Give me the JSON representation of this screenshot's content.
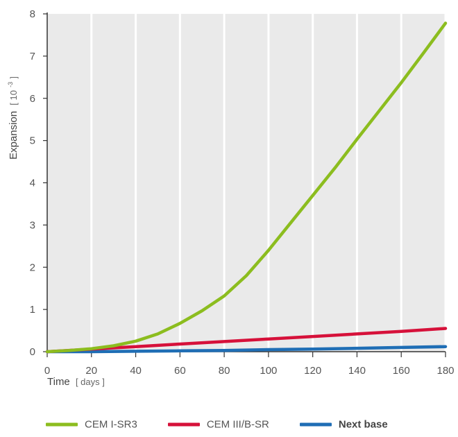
{
  "chart_data": {
    "type": "line",
    "xlabel": "Time",
    "xunit": "[ days ]",
    "ylabel": "Expansion",
    "yunit_prefix": "[ 10",
    "yunit_exp": "-3",
    "yunit_suffix": " ]",
    "xlim": [
      0,
      180
    ],
    "ylim": [
      0,
      8
    ],
    "xticks": [
      0,
      20,
      40,
      60,
      80,
      100,
      120,
      140,
      160,
      180
    ],
    "yticks": [
      0,
      1,
      2,
      3,
      4,
      5,
      6,
      7,
      8
    ],
    "grid": "vertical",
    "legend_position": "bottom",
    "series": [
      {
        "name": "CEM I-SR3",
        "color": "#8cbd1f",
        "x": [
          0,
          10,
          20,
          30,
          40,
          50,
          60,
          70,
          80,
          90,
          100,
          110,
          120,
          130,
          140,
          150,
          160,
          170,
          180
        ],
        "y": [
          0,
          0.03,
          0.07,
          0.14,
          0.25,
          0.42,
          0.67,
          0.97,
          1.32,
          1.8,
          2.4,
          3.05,
          3.7,
          4.35,
          5.03,
          5.7,
          6.37,
          7.07,
          7.78
        ]
      },
      {
        "name": "CEM III/B-SR",
        "color": "#d6113a",
        "x": [
          0,
          20,
          40,
          60,
          80,
          100,
          120,
          140,
          160,
          180
        ],
        "y": [
          0,
          0.06,
          0.12,
          0.18,
          0.24,
          0.3,
          0.36,
          0.42,
          0.48,
          0.55
        ]
      },
      {
        "name": "Next base",
        "color": "#1f6eb5",
        "x": [
          0,
          20,
          40,
          60,
          80,
          100,
          120,
          140,
          160,
          180
        ],
        "y": [
          0,
          0.0,
          0.01,
          0.02,
          0.03,
          0.05,
          0.06,
          0.08,
          0.1,
          0.12
        ]
      }
    ]
  },
  "legend": {
    "items": [
      {
        "label": "CEM I-SR3",
        "color": "#8cbd1f"
      },
      {
        "label": "CEM III/B-SR",
        "color": "#d6113a"
      },
      {
        "label": "Next base",
        "color": "#1f6eb5"
      }
    ]
  }
}
